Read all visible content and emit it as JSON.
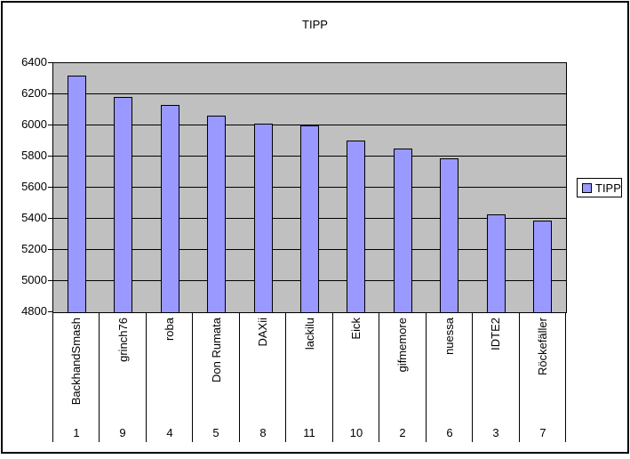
{
  "chart_data": {
    "type": "bar",
    "title": "TIPP",
    "legend": {
      "label": "TIPP",
      "position": "right"
    },
    "series_name": "TIPP",
    "categories": [
      "BackhandSmash",
      "grinch76",
      "roba",
      "Don Rumata",
      "DAXii",
      "lackilu",
      "Eick",
      "gifmemore",
      "nuessa",
      "IDTE2",
      "Röckefäller"
    ],
    "ranks": [
      "1",
      "9",
      "4",
      "5",
      "8",
      "11",
      "10",
      "2",
      "6",
      "3",
      "7"
    ],
    "values": [
      6320,
      6180,
      6130,
      6060,
      6010,
      6000,
      5900,
      5850,
      5790,
      5430,
      5390
    ],
    "ylim": [
      4800,
      6400
    ],
    "ytick_step": 200,
    "yticks": [
      6400,
      6200,
      6000,
      5800,
      5600,
      5400,
      5200,
      5000,
      4800
    ],
    "grid": true,
    "plot_bg": "#C0C0C0",
    "bar_fill": "#9999FF",
    "line_color": "#000000",
    "background": "#FFFFFF",
    "text_color": "#000000"
  }
}
